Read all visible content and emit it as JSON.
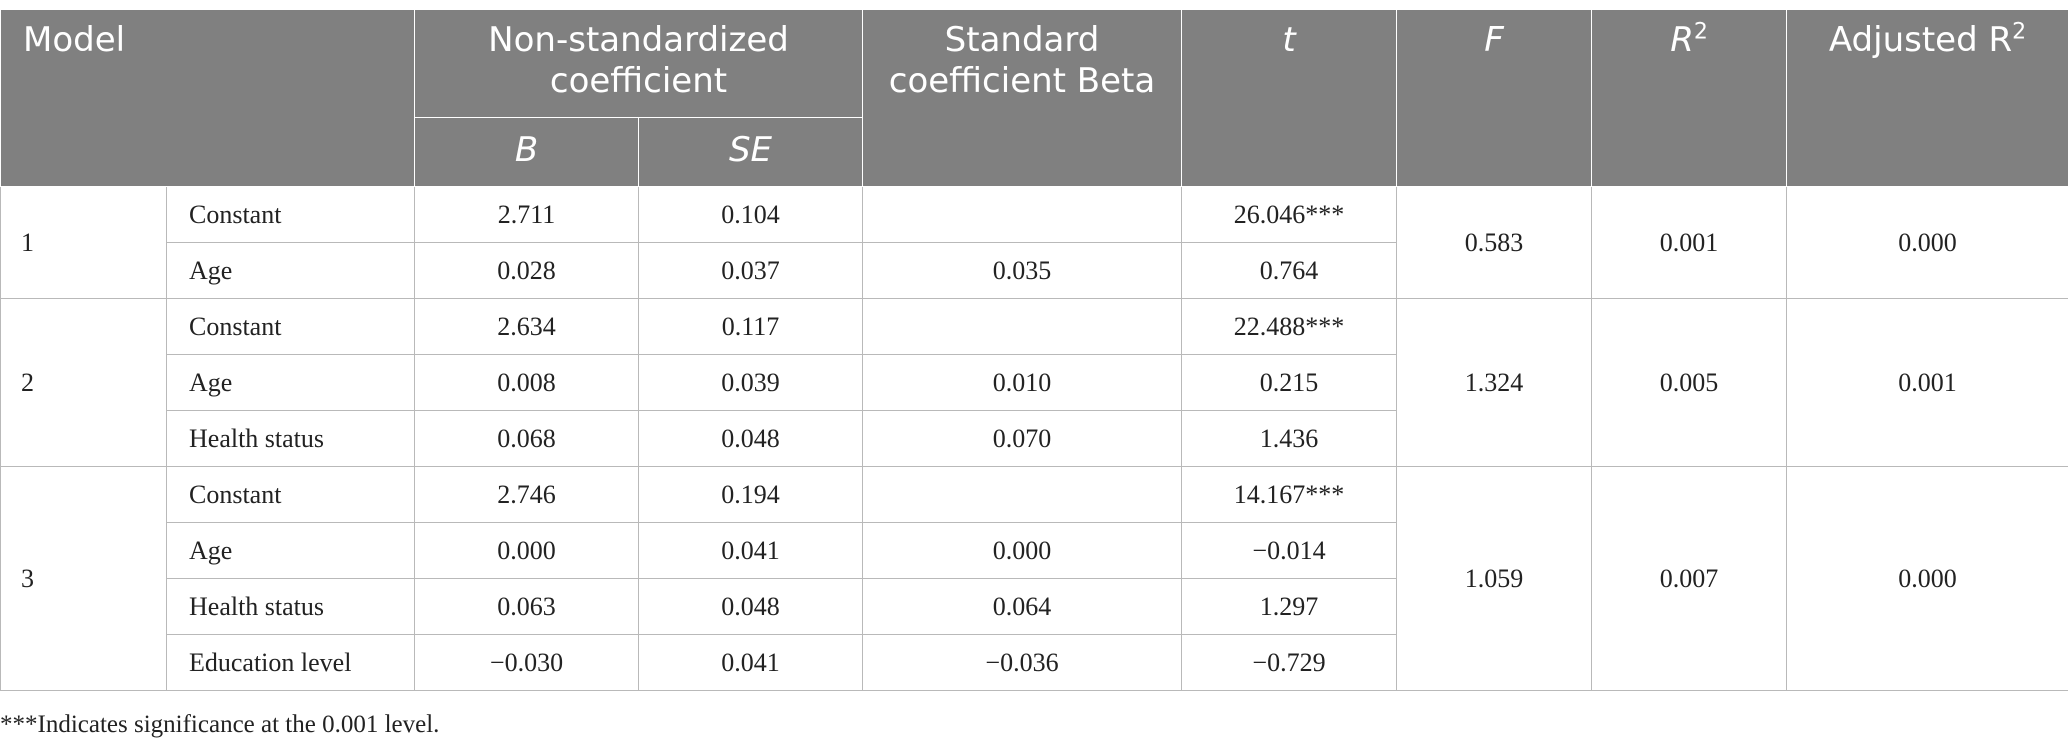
{
  "header": {
    "model": "Model",
    "nonstd": "Non-standardized coefficient",
    "std": "Standard coefficient Beta",
    "t": "t",
    "f": "F",
    "r2_base": "R",
    "r2_sup": "2",
    "adj_base": "Adjusted R",
    "adj_sup": "2",
    "b": "B",
    "se": "SE"
  },
  "models": [
    {
      "id": "1",
      "f": "0.583",
      "r2": "0.001",
      "adj_r2": "0.000",
      "rows": [
        {
          "var": "Constant",
          "b": "2.711",
          "se": "0.104",
          "beta": "",
          "t": "26.046***"
        },
        {
          "var": "Age",
          "b": "0.028",
          "se": "0.037",
          "beta": "0.035",
          "t": "0.764"
        }
      ]
    },
    {
      "id": "2",
      "f": "1.324",
      "r2": "0.005",
      "adj_r2": "0.001",
      "rows": [
        {
          "var": "Constant",
          "b": "2.634",
          "se": "0.117",
          "beta": "",
          "t": "22.488***"
        },
        {
          "var": "Age",
          "b": "0.008",
          "se": "0.039",
          "beta": "0.010",
          "t": "0.215"
        },
        {
          "var": "Health status",
          "b": "0.068",
          "se": "0.048",
          "beta": "0.070",
          "t": "1.436"
        }
      ]
    },
    {
      "id": "3",
      "f": "1.059",
      "r2": "0.007",
      "adj_r2": "0.000",
      "rows": [
        {
          "var": "Constant",
          "b": "2.746",
          "se": "0.194",
          "beta": "",
          "t": "14.167***"
        },
        {
          "var": "Age",
          "b": "0.000",
          "se": "0.041",
          "beta": "0.000",
          "t": "−0.014"
        },
        {
          "var": "Health status",
          "b": "0.063",
          "se": "0.048",
          "beta": "0.064",
          "t": "1.297"
        },
        {
          "var": "Education level",
          "b": "−0.030",
          "se": "0.041",
          "beta": "−0.036",
          "t": "−0.729"
        }
      ]
    }
  ],
  "footnote": "***Indicates significance at the 0.001 level."
}
